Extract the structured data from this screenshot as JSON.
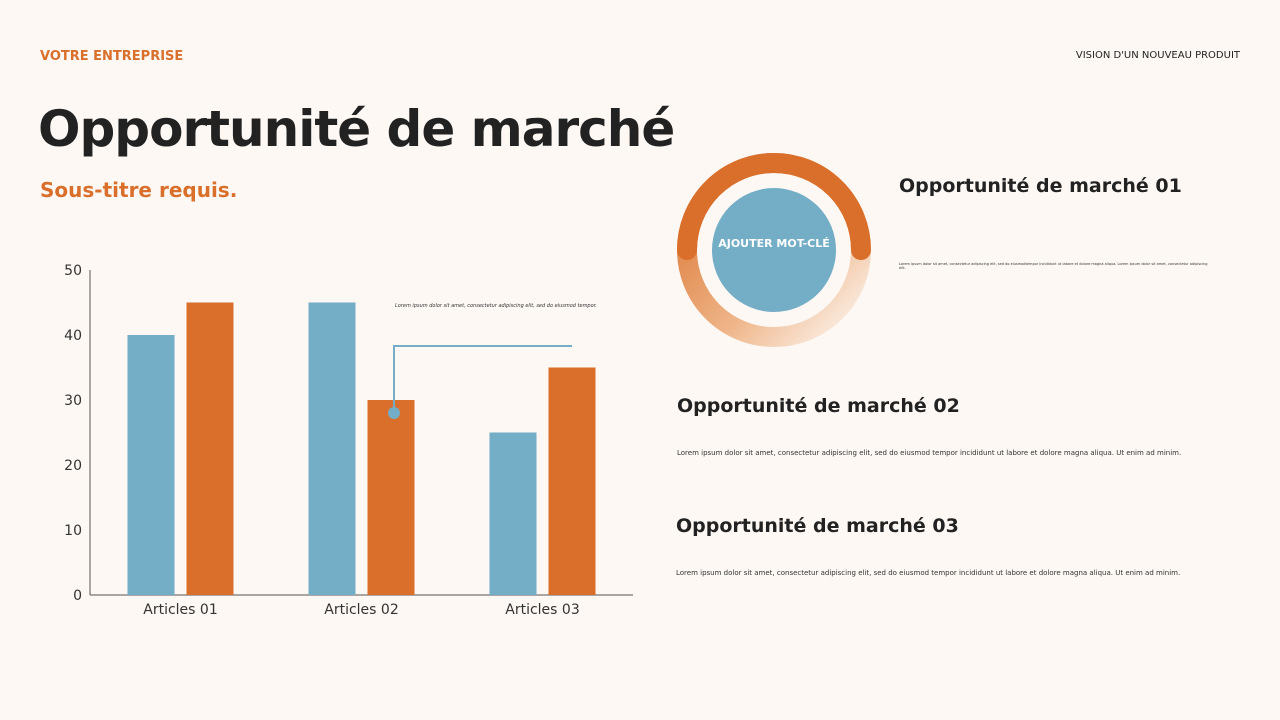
{
  "header": {
    "company": "VOTRE ENTREPRISE",
    "vision": "VISION D'UN NOUVEAU PRODUIT"
  },
  "title": "Opportunité de marché",
  "subtitle": "Sous-titre requis.",
  "chart_data": {
    "type": "bar",
    "categories": [
      "Articles 01",
      "Articles 02",
      "Articles 03"
    ],
    "series": [
      {
        "values": [
          40,
          45,
          25
        ],
        "color": "#74adc6"
      },
      {
        "values": [
          45,
          30,
          35
        ],
        "color": "#d96f2a"
      }
    ],
    "ylim": [
      0,
      50
    ],
    "yticks": [
      0,
      10,
      20,
      30,
      40,
      50
    ],
    "annotation": "Lorem ipsum dolor sit amet, consectetur adipiscing elit, sed do eiusmod tempor."
  },
  "donut": {
    "label": "AJOUTER MOT-CLÉ",
    "ring_color": "#d96f2a",
    "center_color": "#74adc6"
  },
  "sections": [
    {
      "title": "Opportunité de marché 01",
      "text": "Lorem ipsum dolor sit amet, consectetur adipiscing elit, sed do eiusmodtempor incididunt ut labore et dolore magna aliqua. Lorem ipsum dolor sit amet, consectetur adipiscing elit."
    },
    {
      "title": "Opportunité de marché 02",
      "text": "Lorem ipsum dolor sit amet, consectetur adipiscing elit, sed do eiusmod tempor incididunt ut labore et dolore magna aliqua. Ut enim ad minim."
    },
    {
      "title": "Opportunité de marché 03",
      "text": "Lorem ipsum dolor sit amet, consectetur adipiscing elit, sed do eiusmod tempor incididunt ut labore et dolore magna aliqua. Ut enim ad minim."
    }
  ]
}
